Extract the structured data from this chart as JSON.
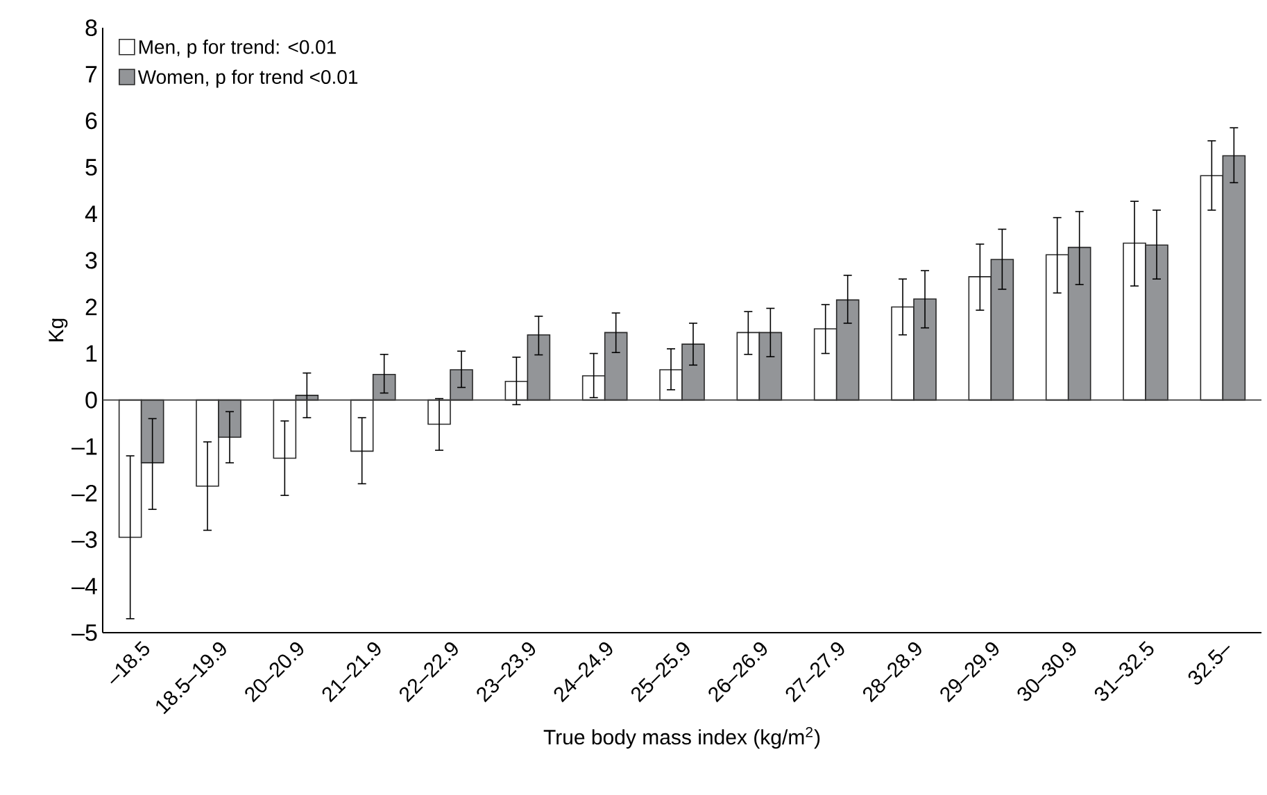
{
  "chart_data": {
    "type": "bar",
    "xlabel": "True body mass index (kg/m$^{2}$)",
    "ylabel": "Kg",
    "categories": [
      "–18.5",
      "18.5–19.9",
      "20–20.9",
      "21–21.9",
      "22–22.9",
      "23–23.9",
      "24–24.9",
      "25–25.9",
      "26–26.9",
      "27–27.9",
      "28–28.9",
      "29–29.9",
      "30–30.9",
      "31–32.5",
      "32.5–"
    ],
    "series": [
      {
        "name": "Men, p for trend: <0.01",
        "color": "#ffffff",
        "values": [
          -2.95,
          -1.85,
          -1.25,
          -1.1,
          -0.52,
          0.4,
          0.52,
          0.65,
          1.45,
          1.53,
          2.0,
          2.65,
          3.12,
          3.37,
          4.82
        ],
        "errors": [
          [
            -4.7,
            -1.2
          ],
          [
            -2.8,
            -0.9
          ],
          [
            -2.05,
            -0.45
          ],
          [
            -1.8,
            -0.38
          ],
          [
            -1.08,
            0.03
          ],
          [
            -0.1,
            0.92
          ],
          [
            0.05,
            1.0
          ],
          [
            0.22,
            1.1
          ],
          [
            0.98,
            1.9
          ],
          [
            1.0,
            2.05
          ],
          [
            1.4,
            2.6
          ],
          [
            1.93,
            3.35
          ],
          [
            2.3,
            3.92
          ],
          [
            2.45,
            4.27
          ],
          [
            4.08,
            5.57
          ]
        ]
      },
      {
        "name": "Women, p for trend <0.01",
        "color": "#939598",
        "values": [
          -1.35,
          -0.8,
          0.1,
          0.55,
          0.65,
          1.4,
          1.45,
          1.2,
          1.45,
          2.15,
          2.17,
          3.02,
          3.28,
          3.33,
          5.25
        ],
        "errors": [
          [
            -2.35,
            -0.4
          ],
          [
            -1.35,
            -0.25
          ],
          [
            -0.38,
            0.58
          ],
          [
            0.15,
            0.98
          ],
          [
            0.27,
            1.05
          ],
          [
            0.97,
            1.8
          ],
          [
            1.02,
            1.87
          ],
          [
            0.75,
            1.65
          ],
          [
            0.93,
            1.97
          ],
          [
            1.65,
            2.68
          ],
          [
            1.55,
            2.78
          ],
          [
            2.38,
            3.67
          ],
          [
            2.48,
            4.05
          ],
          [
            2.6,
            4.08
          ],
          [
            4.67,
            5.85
          ]
        ]
      }
    ],
    "ylim": [
      -5,
      8
    ],
    "yticks": [
      {
        "value": -5,
        "label": "–5"
      },
      {
        "value": -4,
        "label": "–4"
      },
      {
        "value": -3,
        "label": "–3"
      },
      {
        "value": -2,
        "label": "–2"
      },
      {
        "value": -1,
        "label": "–1"
      },
      0,
      1,
      2,
      3,
      4,
      5,
      6,
      7,
      8
    ],
    "ref_lines": [
      {
        "axis": "y",
        "value": 0
      }
    ],
    "grid": false,
    "legend": "top left"
  }
}
